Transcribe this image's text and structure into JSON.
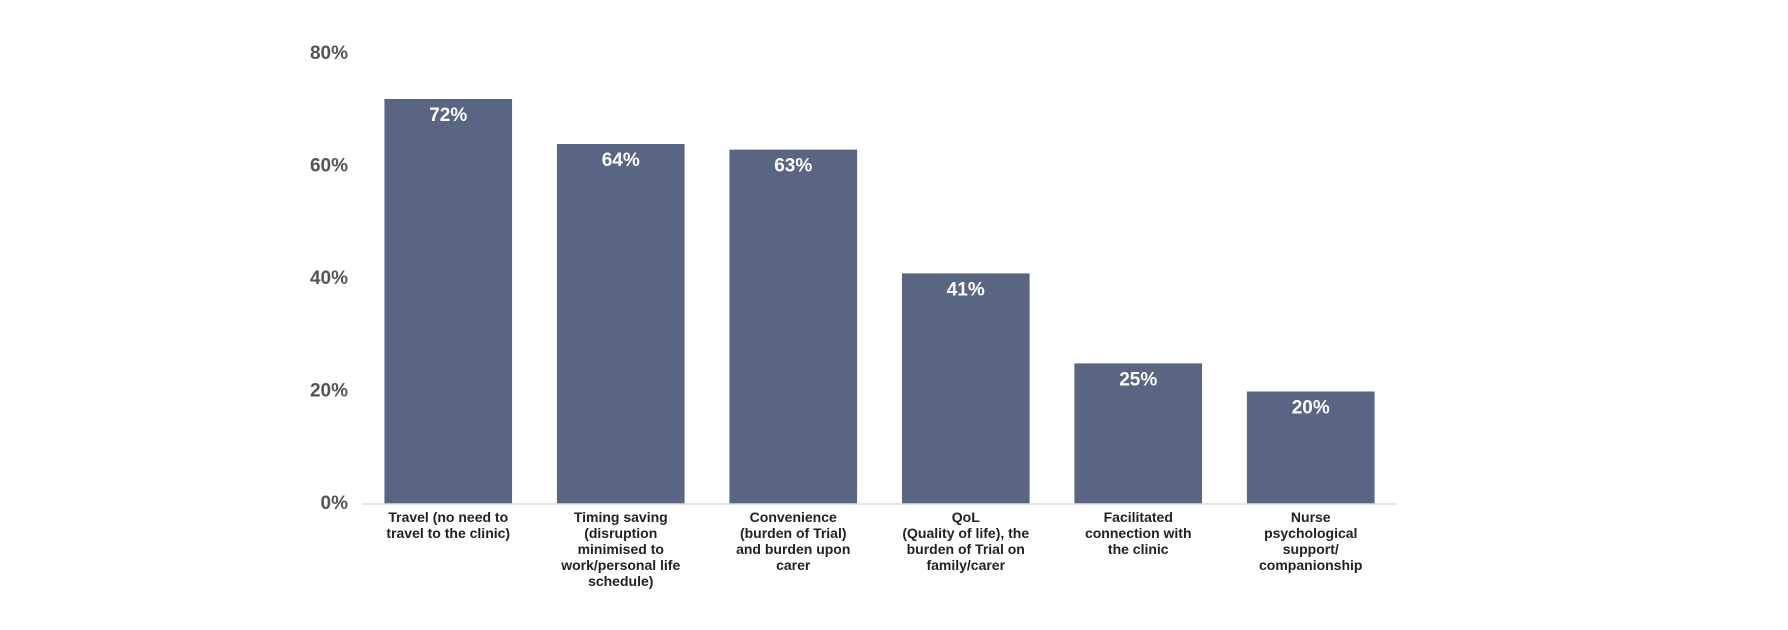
{
  "chart_data": {
    "type": "bar",
    "categories": [
      "Travel (no need to\ntravel to the clinic)",
      "Timing saving\n(disruption\nminimised to\nwork/personal life\nschedule)",
      "Convenience\n(burden of Trial)\nand burden upon\ncarer",
      "QoL\n(Quality of life), the\nburden of Trial on\nfamily/carer",
      "Facilitated\nconnection with\nthe clinic",
      "Nurse\npsychological\nsupport/\ncompanionship"
    ],
    "values": [
      72,
      64,
      63,
      41,
      25,
      20
    ],
    "value_labels": [
      "72%",
      "64%",
      "63%",
      "41%",
      "25%",
      "20%"
    ],
    "color": "#5a6483",
    "ylim": [
      0,
      80
    ],
    "yticks": [
      {
        "value": 0,
        "label": "0%"
      },
      {
        "value": 20,
        "label": "20%"
      },
      {
        "value": 40,
        "label": "40%"
      },
      {
        "value": 60,
        "label": "60%"
      },
      {
        "value": 80,
        "label": "80%"
      }
    ],
    "grid": false
  }
}
